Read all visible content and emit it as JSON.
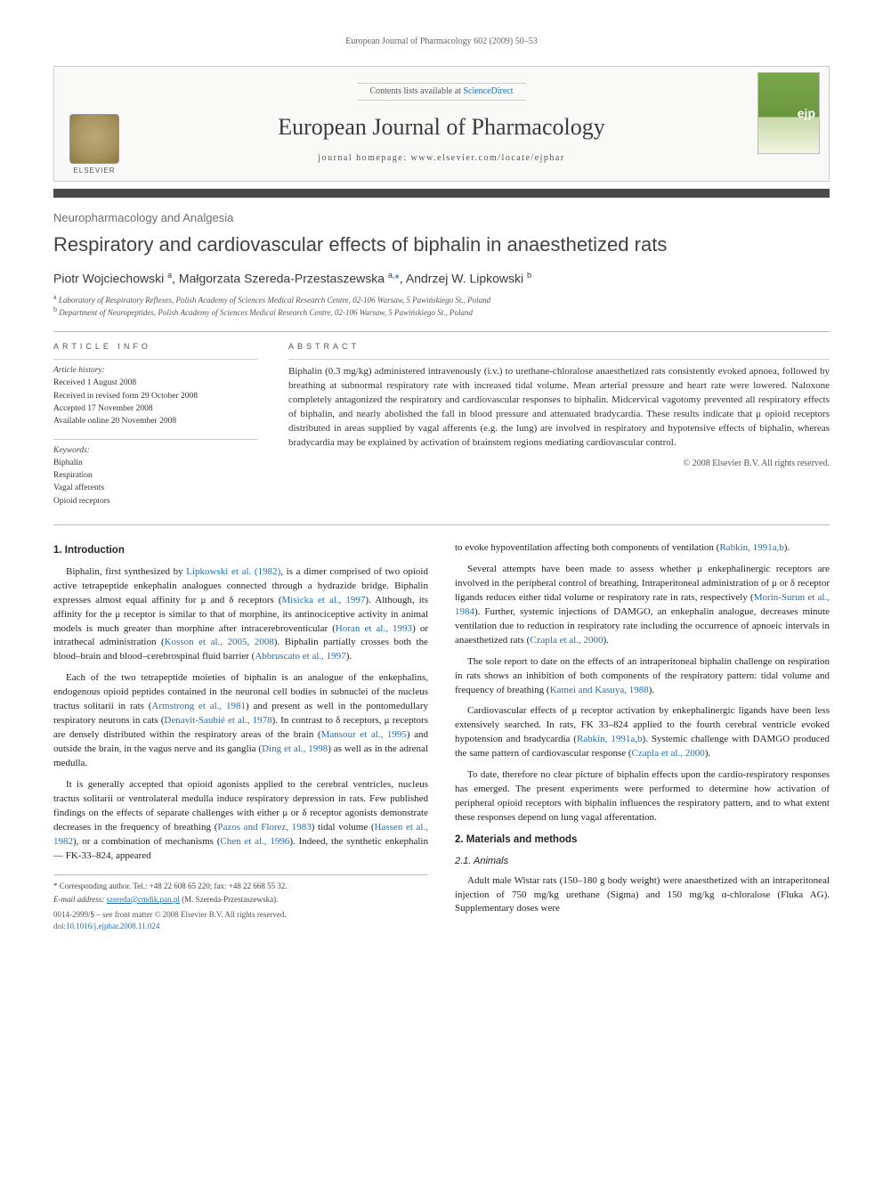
{
  "running_head": "European Journal of Pharmacology 602 (2009) 50–53",
  "header": {
    "contents_prefix": "Contents lists available at ",
    "contents_link": "ScienceDirect",
    "journal_name": "European Journal of Pharmacology",
    "homepage_label": "journal homepage: ",
    "homepage_url": "www.elsevier.com/locate/ejphar",
    "publisher": "ELSEVIER"
  },
  "section_label": "Neuropharmacology and Analgesia",
  "title": "Respiratory and cardiovascular effects of biphalin in anaesthetized rats",
  "authors_html": "Piotr Wojciechowski <sup>a</sup>, Małgorzata Szereda-Przestaszewska <sup>a,</sup><span class='corr'>*</span>, Andrzej W. Lipkowski <sup>b</sup>",
  "affiliations": {
    "a": "Laboratory of Respiratory Reflexes, Polish Academy of Sciences Medical Research Centre, 02-106 Warsaw, 5 Pawińskiego St., Poland",
    "b": "Department of Neuropeptides, Polish Academy of Sciences Medical Research Centre, 02-106 Warsaw, 5 Pawińskiego St., Poland"
  },
  "article_info": {
    "heading": "ARTICLE INFO",
    "history_head": "Article history:",
    "received": "Received 1 August 2008",
    "revised": "Received in revised form 29 October 2008",
    "accepted": "Accepted 17 November 2008",
    "online": "Available online 20 November 2008",
    "keywords_head": "Keywords:",
    "keywords": [
      "Biphalin",
      "Respiration",
      "Vagal afferents",
      "Opioid receptors"
    ]
  },
  "abstract": {
    "heading": "ABSTRACT",
    "text": "Biphalin (0.3 mg/kg) administered intravenously (i.v.) to urethane-chloralose anaesthetized rats consistently evoked apnoea, followed by breathing at subnormal respiratory rate with increased tidal volume. Mean arterial pressure and heart rate were lowered. Naloxone completely antagonized the respiratory and cardiovascular responses to biphalin. Midcervical vagotomy prevented all respiratory effects of biphalin, and nearly abolished the fall in blood pressure and attenuated bradycardia. These results indicate that μ opioid receptors distributed in areas supplied by vagal afferents (e.g. the lung) are involved in respiratory and hypotensive effects of biphalin, whereas bradycardia may be explained by activation of brainstem regions mediating cardiovascular control.",
    "copyright": "© 2008 Elsevier B.V. All rights reserved."
  },
  "body": {
    "intro_head": "1. Introduction",
    "p1": "Biphalin, first synthesized by <span class='cite'>Lipkowski et al. (1982)</span>, is a dimer comprised of two opioid active tetrapeptide enkephalin analogues connected through a hydrazide bridge. Biphalin expresses almost equal affinity for μ and δ receptors (<span class='cite'>Misicka et al., 1997</span>). Although, its affinity for the μ receptor is similar to that of morphine, its antinociceptive activity in animal models is much greater than morphine after intracerebroventicular (<span class='cite'>Horan et al., 1993</span>) or intrathecal administration (<span class='cite'>Kosson et al., 2005, 2008</span>). Biphalin partially crosses both the blood–brain and blood–cerebrospinal fluid barrier (<span class='cite'>Abbruscato et al., 1997</span>).",
    "p2": "Each of the two tetrapeptide moieties of biphalin is an analogue of the enkephalins, endogenous opioid peptides contained in the neuronal cell bodies in subnuclei of the nucleus tractus solitarii in rats (<span class='cite'>Armstrong et al., 1981</span>) and present as well in the pontomedullary respiratory neurons in cats (<span class='cite'>Denavit-Saubié et al., 1978</span>). In contrast to δ receptors, μ receptors are densely distributed within the respiratory areas of the brain (<span class='cite'>Mansour et al., 1995</span>) and outside the brain, in the vagus nerve and its ganglia (<span class='cite'>Ding et al., 1998</span>) as well as in the adrenal medulla.",
    "p3": "It is generally accepted that opioid agonists applied to the cerebral ventricles, nucleus tractus solitarii or ventrolateral medulla induce respiratory depression in rats. Few published findings on the effects of separate challenges with either μ or δ receptor agonists demonstrate decreases in the frequency of breathing (<span class='cite'>Pazos and Florez, 1983</span>) tidal volume (<span class='cite'>Hassen et al., 1982</span>), or a combination of mechanisms (<span class='cite'>Chen et al., 1996</span>). Indeed, the synthetic enkephalin — FK-33–824, appeared",
    "p4": "to evoke hypoventilation affecting both components of ventilation (<span class='cite'>Rabkin, 1991a,b</span>).",
    "p5": "Several attempts have been made to assess whether μ enkephalinergic receptors are involved in the peripheral control of breathing. Intraperitoneal administration of μ or δ receptor ligands reduces either tidal volume or respiratory rate in rats, respectively (<span class='cite'>Morin-Surun et al., 1984</span>). Further, systemic injections of DAMGO, an enkephalin analogue, decreases minute ventilation due to reduction in respiratory rate including the occurrence of apnoeic intervals in anaesthetized rats (<span class='cite'>Czapla et al., 2000</span>).",
    "p6": "The sole report to date on the effects of an intraperitoneal biphalin challenge on respiration in rats shows an inhibition of both components of the respiratory pattern: tidal volume and frequency of breathing (<span class='cite'>Kamei and Kasuya, 1988</span>).",
    "p7": "Cardiovascular effects of μ receptor activation by enkephalinergic ligands have been less extensively searched. In rats, FK 33–824 applied to the fourth cerebral ventricle evoked hypotension and bradycardia (<span class='cite'>Rabkin, 1991a,b</span>). Systemic challenge with DAMGO produced the same pattern of cardiovascular response (<span class='cite'>Czapla et al., 2000</span>).",
    "p8": "To date, therefore no clear picture of biphalin effects upon the cardio-respiratory responses has emerged. The present experiments were performed to determine how activation of peripheral opioid receptors with biphalin influences the respiratory pattern, and to what extent these responses depend on lung vagal afferentation.",
    "mm_head": "2. Materials and methods",
    "animals_head": "2.1. Animals",
    "p9": "Adult male Wistar rats (150–180 g body weight) were anaesthetized with an intraperitoneal injection of 750 mg/kg urethane (Sigma) and 150 mg/kg α-chloralose (Fluka AG). Supplementary doses were"
  },
  "footnote": {
    "corr": "* Corresponding author. Tel.: +48 22 608 65 220; fax: +48 22 668 55 32.",
    "email_label": "E-mail address:",
    "email": "szereda@cmdik.pan.pl",
    "email_who": "(M. Szereda-Przestaszewska)."
  },
  "footer": {
    "line1": "0014-2999/$ – see front matter © 2008 Elsevier B.V. All rights reserved.",
    "doi_label": "doi:",
    "doi": "10.1016/j.ejphar.2008.11.024"
  },
  "colors": {
    "link": "#1f6fb2",
    "rule": "#4a4a4a",
    "text": "#333333"
  }
}
